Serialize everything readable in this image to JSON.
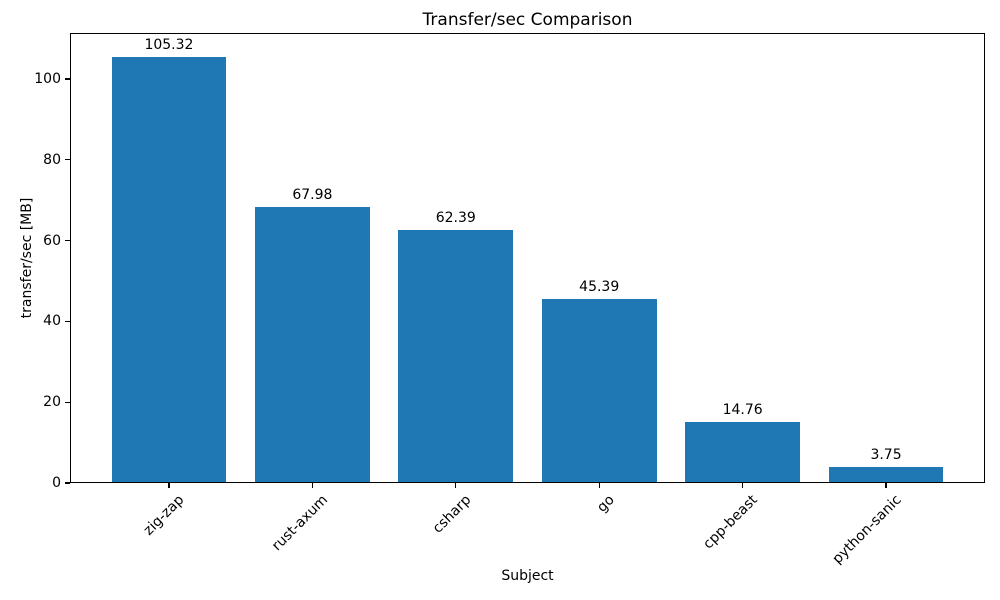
{
  "figure": {
    "background_color": "#ffffff",
    "text_color": "#000000"
  },
  "chart_data": {
    "type": "bar",
    "title": "Transfer/sec Comparison",
    "xlabel": "Subject",
    "ylabel": "transfer/sec [MB]",
    "categories": [
      "zig-zap",
      "rust-axum",
      "csharp",
      "go",
      "cpp-beast",
      "python-sanic"
    ],
    "values": [
      105.32,
      67.98,
      62.39,
      45.39,
      14.76,
      3.75
    ],
    "bar_value_labels": [
      "105.32",
      "67.98",
      "62.39",
      "45.39",
      "14.76",
      "3.75"
    ],
    "yticks": [
      0,
      20,
      40,
      60,
      80,
      100
    ],
    "ylim": [
      0,
      111.4
    ],
    "bar_color": "#1f77b4",
    "grid": false,
    "legend": "none",
    "xtick_rotation_deg": 45
  }
}
